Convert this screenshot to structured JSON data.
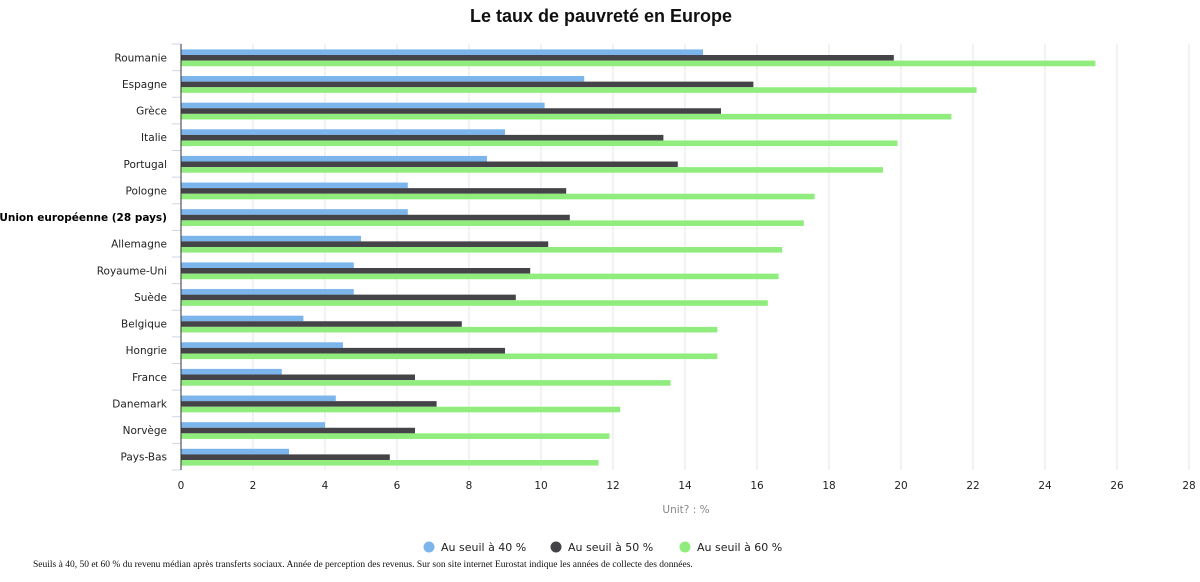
{
  "chart_data": {
    "type": "bar",
    "orientation": "horizontal",
    "title": "Le taux de pauvreté en Europe",
    "xlabel": "Unit? : %",
    "ylabel": "",
    "xlim": [
      0,
      28
    ],
    "x_ticks": [
      0,
      2,
      4,
      6,
      8,
      10,
      12,
      14,
      16,
      18,
      20,
      22,
      24,
      26,
      28
    ],
    "grid": true,
    "legend_position": "bottom-center",
    "categories": [
      "Roumanie",
      "Espagne",
      "Grèce",
      "Italie",
      "Portugal",
      "Pologne",
      "Union européenne (28 pays)",
      "Allemagne",
      "Royaume-Uni",
      "Suède",
      "Belgique",
      "Hongrie",
      "France",
      "Danemark",
      "Norvège",
      "Pays-Bas"
    ],
    "highlighted_category": "Union européenne (28 pays)",
    "series": [
      {
        "name": "Au seuil à 40 %",
        "color": "#7cb5ec",
        "values": [
          14.5,
          11.2,
          10.1,
          9.0,
          8.5,
          6.3,
          6.3,
          5.0,
          4.8,
          4.8,
          3.4,
          4.5,
          2.8,
          4.3,
          4.0,
          3.0
        ]
      },
      {
        "name": "Au seuil à 50 %",
        "color": "#434348",
        "values": [
          19.8,
          15.9,
          15.0,
          13.4,
          13.8,
          10.7,
          10.8,
          10.2,
          9.7,
          9.3,
          7.8,
          9.0,
          6.5,
          7.1,
          6.5,
          5.8
        ]
      },
      {
        "name": "Au seuil à 60 %",
        "color": "#90ed7d",
        "values": [
          25.4,
          22.1,
          21.4,
          19.9,
          19.5,
          17.6,
          17.3,
          16.7,
          16.6,
          16.3,
          14.9,
          14.9,
          13.6,
          12.2,
          11.9,
          11.6
        ]
      }
    ],
    "footnote": "Seuils à 40, 50 et 60 % du revenu médian après transferts sociaux. Année de perception des revenus. Sur son site internet Eurostat indique les années de collecte des données."
  },
  "colors": {
    "grid": "#e6e6e6",
    "axis": "#333333",
    "category_tick": "#ccd6eb"
  }
}
